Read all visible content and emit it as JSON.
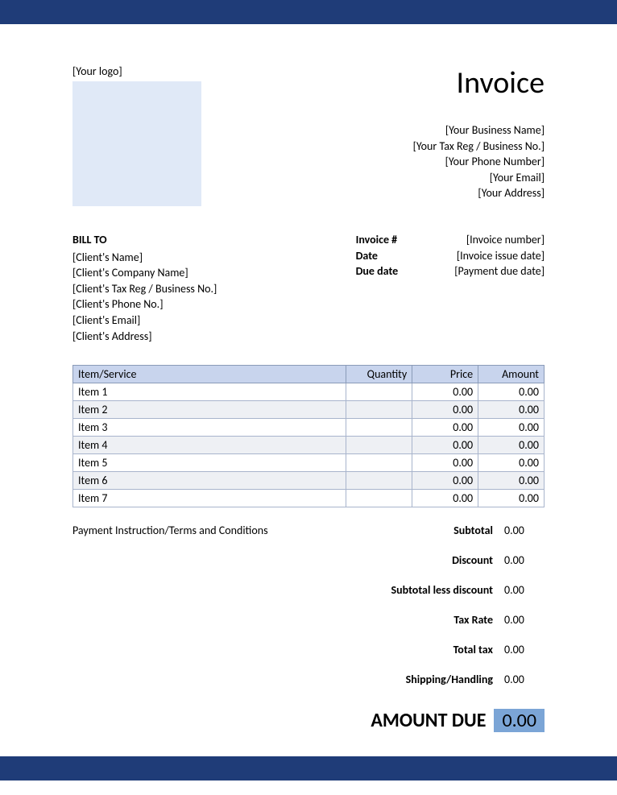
{
  "colors": {
    "bar": "#1f3c78",
    "logo_box": "#e0e9f7",
    "table_header_bg": "#c8d4ed",
    "table_border": "#a8b4cc",
    "row_alt_bg": "#eef0f4",
    "amount_due_bg": "#7ba5d6"
  },
  "logo_label": "[Your logo]",
  "title": "Invoice",
  "business": {
    "name": "[Your Business Name]",
    "tax_reg": "[Your Tax Reg / Business No.]",
    "phone": "[Your Phone Number]",
    "email": "[Your Email]",
    "address": "[Your Address]"
  },
  "bill_to": {
    "heading": "BILL TO",
    "name": "[Client's Name]",
    "company": "[Client's Company Name]",
    "tax_reg": "[Client's Tax Reg / Business No.]",
    "phone": "[Client's Phone No.]",
    "email": "[Client's Email]",
    "address": "[Client's Address]"
  },
  "meta": {
    "invoice_num_label": "Invoice #",
    "invoice_num": "[Invoice number]",
    "date_label": "Date",
    "date": "[Invoice issue date]",
    "due_label": "Due date",
    "due": "[Payment due date]"
  },
  "table": {
    "columns": {
      "item": "Item/Service",
      "qty": "Quantity",
      "price": "Price",
      "amount": "Amount"
    },
    "col_widths": {
      "item": "58%",
      "qty": "14%",
      "price": "14%",
      "amount": "14%"
    },
    "rows": [
      {
        "item": "Item 1",
        "qty": "",
        "price": "0.00",
        "amount": "0.00",
        "alt": false
      },
      {
        "item": "Item 2",
        "qty": "",
        "price": "0.00",
        "amount": "0.00",
        "alt": true
      },
      {
        "item": "Item 3",
        "qty": "",
        "price": "0.00",
        "amount": "0.00",
        "alt": false
      },
      {
        "item": "Item 4",
        "qty": "",
        "price": "0.00",
        "amount": "0.00",
        "alt": true
      },
      {
        "item": "Item 5",
        "qty": "",
        "price": "0.00",
        "amount": "0.00",
        "alt": false
      },
      {
        "item": "Item 6",
        "qty": "",
        "price": "0.00",
        "amount": "0.00",
        "alt": true
      },
      {
        "item": "Item 7",
        "qty": "",
        "price": "0.00",
        "amount": "0.00",
        "alt": false
      }
    ]
  },
  "payment_terms": "Payment Instruction/Terms and Conditions",
  "totals": [
    {
      "label": "Subtotal",
      "value": "0.00"
    },
    {
      "label": "Discount",
      "value": "0.00"
    },
    {
      "label": "Subtotal less discount",
      "value": "0.00"
    },
    {
      "label": "Tax Rate",
      "value": "0.00"
    },
    {
      "label": "Total tax",
      "value": "0.00"
    },
    {
      "label": "Shipping/Handling",
      "value": "0.00"
    }
  ],
  "amount_due": {
    "label": "AMOUNT DUE",
    "value": "0.00"
  }
}
